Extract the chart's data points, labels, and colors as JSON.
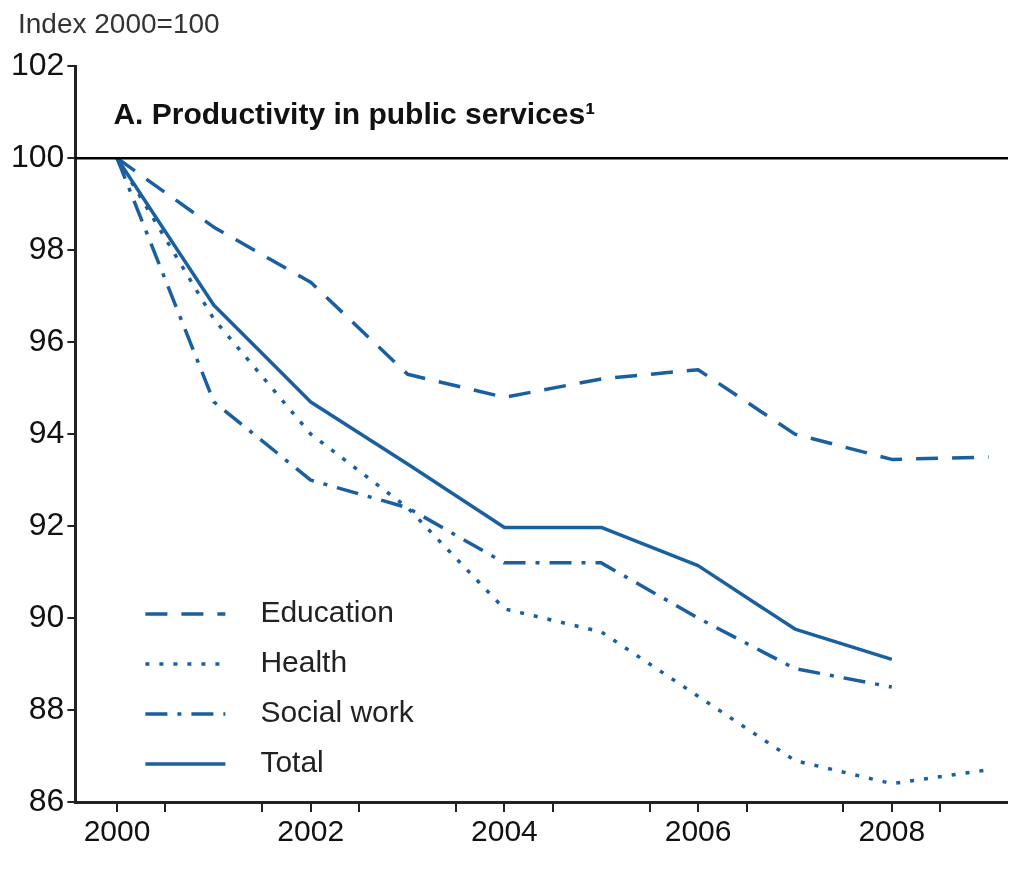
{
  "chart_data": {
    "type": "line",
    "title": "A. Productivity in public services¹",
    "ylabel": "Index 2000=100",
    "x": [
      2000,
      2001,
      2002,
      2003,
      2004,
      2005,
      2006,
      2007,
      2008,
      2009
    ],
    "series": [
      {
        "name": "Education",
        "color": "#1a5fa0",
        "line_style": "dashed",
        "values": [
          100,
          98.5,
          97.3,
          95.3,
          94.8,
          95.2,
          95.4,
          94.0,
          93.45,
          93.5
        ]
      },
      {
        "name": "Health",
        "color": "#1a5fa0",
        "line_style": "dotted",
        "values": [
          100,
          96.5,
          94.0,
          92.4,
          90.2,
          89.7,
          88.3,
          86.9,
          86.4,
          86.7
        ]
      },
      {
        "name": "Social work",
        "color": "#1a5fa0",
        "line_style": "dashdot",
        "values": [
          100,
          94.7,
          93.0,
          92.4,
          91.2,
          91.2,
          90.0,
          88.9,
          88.5,
          null
        ]
      },
      {
        "name": "Total",
        "color": "#1a5fa0",
        "line_style": "solid",
        "values": [
          100,
          96.8,
          94.7,
          93.35,
          91.97,
          91.97,
          91.14,
          89.76,
          89.1,
          null
        ]
      }
    ],
    "xlim": [
      1999.57,
      2009.2
    ],
    "xticks": [
      2000,
      {
        "value": 2000.5,
        "label": null
      },
      2002,
      {
        "value": 2001.5,
        "label": null
      },
      {
        "value": 2002.5,
        "label": null
      },
      {
        "value": 2003.5,
        "label": null
      },
      2004,
      {
        "value": 2004.5,
        "label": null
      },
      {
        "value": 2005.5,
        "label": null
      },
      2006,
      {
        "value": 2006.5,
        "label": null
      },
      {
        "value": 2007.5,
        "label": null
      },
      2008,
      {
        "value": 2008.5,
        "label": null
      }
    ],
    "ylim": [
      86,
      102
    ],
    "yticks": [
      86,
      88,
      90,
      92,
      94,
      96,
      98,
      100,
      102
    ],
    "ref_lines": [
      {
        "axis": "y",
        "value": 100,
        "color": "#000000",
        "line_style": "solid"
      }
    ],
    "grid": false,
    "legend": "bottom left",
    "marker": "none"
  }
}
